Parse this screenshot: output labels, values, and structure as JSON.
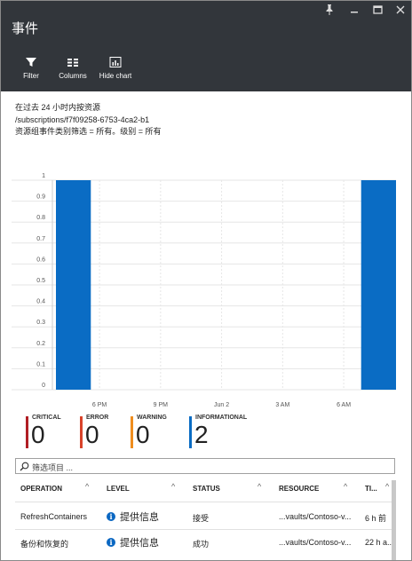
{
  "header": {
    "title": "事件",
    "window_controls": [
      "pin-icon",
      "minimize-icon",
      "maximize-icon",
      "close-icon"
    ],
    "toolbar": [
      {
        "label": "Filter",
        "icon": "filter-icon"
      },
      {
        "label": "Columns",
        "icon": "columns-icon"
      },
      {
        "label": "Hide chart",
        "icon": "chart-icon"
      }
    ]
  },
  "info": {
    "line1": "在过去 24 小时内按资源",
    "line2": "/subscriptions/f7f09258-6753-4ca2-b1",
    "line3": "资源组事件类别筛选 = 所有。级别 = 所有"
  },
  "chart_data": {
    "type": "bar",
    "title": "",
    "xlabel": "",
    "ylabel": "",
    "ylim": [
      0,
      1
    ],
    "y_ticks": [
      "0",
      "0.1",
      "0.2",
      "0.3",
      "0.4",
      "0.5",
      "0.6",
      "0.7",
      "0.8",
      "0.9",
      "1"
    ],
    "x_ticks": [
      "6 PM",
      "9 PM",
      "Jun 2",
      "3 AM",
      "6 AM"
    ],
    "x_positions": [
      0.5,
      4,
      7.5,
      11,
      14.5
    ],
    "xlim": [
      -2,
      17.5
    ],
    "bars": [
      {
        "x": -1,
        "value": 1
      },
      {
        "x": 16.5,
        "value": 1
      }
    ],
    "color": "#0a6cc4",
    "grid": true
  },
  "summary": [
    {
      "label": "CRITICAL",
      "count": "0",
      "color": "#b01e24"
    },
    {
      "label": "ERROR",
      "count": "0",
      "color": "#d9432a"
    },
    {
      "label": "WARNING",
      "count": "0",
      "color": "#ef8d1e"
    },
    {
      "label": "INFORMATIONAL",
      "count": "2",
      "color": "#0a6cc4"
    }
  ],
  "search": {
    "placeholder": "筛选项目 ..."
  },
  "table": {
    "columns": [
      "OPERATION",
      "LEVEL",
      "STATUS",
      "RESOURCE",
      "TI..."
    ],
    "rows": [
      {
        "operation": "RefreshContainers",
        "level": "提供信息",
        "status": "接受",
        "resource": "...vaults/Contoso-v...",
        "time": "6 h 前"
      },
      {
        "operation": "备份和恢复的",
        "level": "提供信息",
        "status": "成功",
        "resource": "...vaults/Contoso-v...",
        "time": "22 h a..."
      }
    ]
  }
}
